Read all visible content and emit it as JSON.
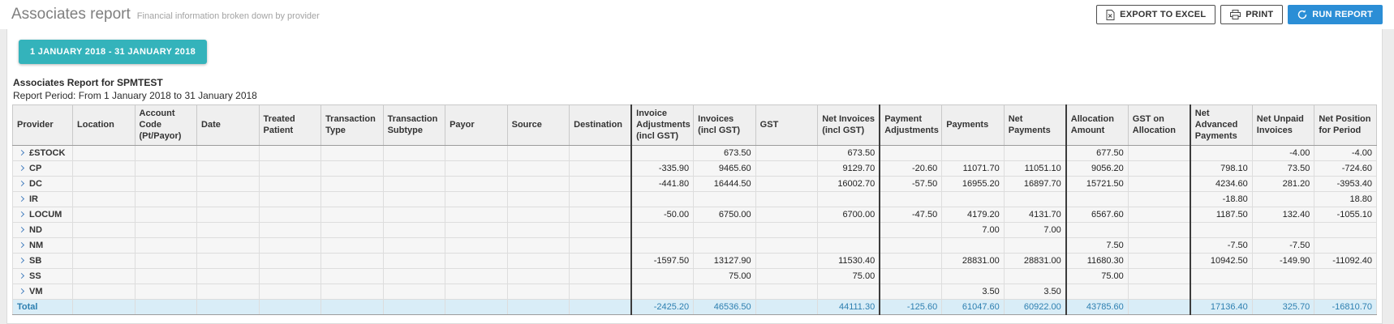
{
  "page": {
    "title": "Associates report",
    "subtitle": "Financial information broken down by provider"
  },
  "toolbar": {
    "export_label": "EXPORT TO EXCEL",
    "print_label": "PRINT",
    "run_label": "RUN REPORT"
  },
  "filters": {
    "date_range": "1 JANUARY 2018 - 31 JANUARY 2018"
  },
  "report": {
    "heading": "Associates Report for SPMTEST",
    "period": "Report Period: From 1 January 2018 to 31 January 2018"
  },
  "colors": {
    "teal_accent": "#34b3bb",
    "run_button_blue": "#2b8ed6",
    "total_row_bg": "#d9edf7",
    "total_row_text": "#2d7fb0",
    "chevron_blue": "#4a82c0"
  },
  "icons": {
    "export_icon": "excel-document-icon",
    "print_icon": "printer-icon",
    "run_icon": "refresh-icon",
    "row_icon": "chevron-right-icon"
  },
  "table": {
    "columns": [
      "Provider",
      "Location",
      "Account Code (Pt/Payor)",
      "Date",
      "Treated Patient",
      "Transaction Type",
      "Transaction Subtype",
      "Payor",
      "Source",
      "Destination",
      "Invoice Adjustments (incl GST)",
      "Invoices (incl GST)",
      "GST",
      "Net Invoices (incl GST)",
      "Payment Adjustments",
      "Payments",
      "Net Payments",
      "Allocation Amount",
      "GST on Allocation",
      "Net Advanced Payments",
      "Net Unpaid Invoices",
      "Net Position for Period"
    ],
    "rows": [
      {
        "provider": "£STOCK",
        "values": [
          "",
          "673.50",
          "",
          "673.50",
          "",
          "",
          "",
          "677.50",
          "",
          "",
          "-4.00",
          "-4.00"
        ]
      },
      {
        "provider": "CP",
        "values": [
          "-335.90",
          "9465.60",
          "",
          "9129.70",
          "-20.60",
          "11071.70",
          "11051.10",
          "9056.20",
          "",
          "798.10",
          "73.50",
          "-724.60"
        ]
      },
      {
        "provider": "DC",
        "values": [
          "-441.80",
          "16444.50",
          "",
          "16002.70",
          "-57.50",
          "16955.20",
          "16897.70",
          "15721.50",
          "",
          "4234.60",
          "281.20",
          "-3953.40"
        ]
      },
      {
        "provider": "IR",
        "values": [
          "",
          "",
          "",
          "",
          "",
          "",
          "",
          "",
          "",
          "-18.80",
          "",
          "18.80"
        ]
      },
      {
        "provider": "LOCUM",
        "values": [
          "-50.00",
          "6750.00",
          "",
          "6700.00",
          "-47.50",
          "4179.20",
          "4131.70",
          "6567.60",
          "",
          "1187.50",
          "132.40",
          "-1055.10"
        ]
      },
      {
        "provider": "ND",
        "values": [
          "",
          "",
          "",
          "",
          "",
          "7.00",
          "7.00",
          "",
          "",
          "",
          "",
          ""
        ]
      },
      {
        "provider": "NM",
        "values": [
          "",
          "",
          "",
          "",
          "",
          "",
          "",
          "7.50",
          "",
          "-7.50",
          "-7.50",
          ""
        ]
      },
      {
        "provider": "SB",
        "values": [
          "-1597.50",
          "13127.90",
          "",
          "11530.40",
          "",
          "28831.00",
          "28831.00",
          "11680.30",
          "",
          "10942.50",
          "-149.90",
          "-11092.40"
        ]
      },
      {
        "provider": "SS",
        "values": [
          "",
          "75.00",
          "",
          "75.00",
          "",
          "",
          "",
          "75.00",
          "",
          "",
          "",
          ""
        ]
      },
      {
        "provider": "VM",
        "values": [
          "",
          "",
          "",
          "",
          "",
          "3.50",
          "3.50",
          "",
          "",
          "",
          "",
          ""
        ]
      }
    ],
    "total": {
      "label": "Total",
      "values": [
        "-2425.20",
        "46536.50",
        "",
        "44111.30",
        "-125.60",
        "61047.60",
        "60922.00",
        "43785.60",
        "",
        "17136.40",
        "325.70",
        "-16810.70"
      ]
    }
  }
}
